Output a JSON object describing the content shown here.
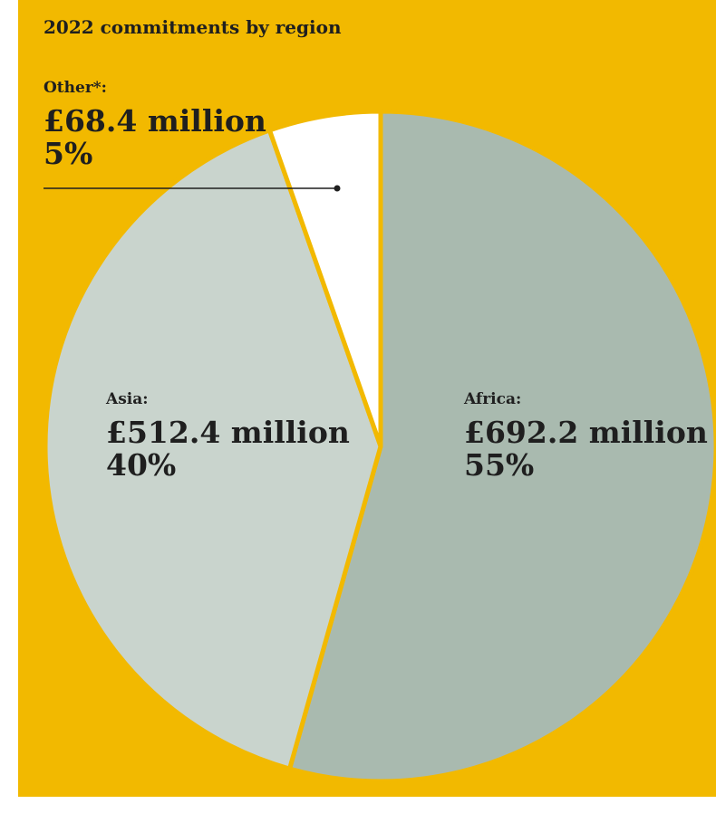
{
  "colors": {
    "background": "#F2B900",
    "africa": "#A9BAAF",
    "asia": "#C9D4CD",
    "other": "#FFFFFF",
    "separator": "#F2B900",
    "leader": "#1F1F1F"
  },
  "chart_data": {
    "type": "pie",
    "title": "2022 commitments by region",
    "slices": [
      {
        "name": "Africa:",
        "value_label": "£692.2 million",
        "percent_label": "55%",
        "value": 692.2,
        "percent": 55,
        "color": "#A9BAAF"
      },
      {
        "name": "Asia:",
        "value_label": "£512.4 million",
        "percent_label": "40%",
        "value": 512.4,
        "percent": 40,
        "color": "#C9D4CD"
      },
      {
        "name": "Other*:",
        "value_label": "£68.4 million",
        "percent_label": "5%",
        "value": 68.4,
        "percent": 5,
        "color": "#FFFFFF"
      }
    ]
  }
}
